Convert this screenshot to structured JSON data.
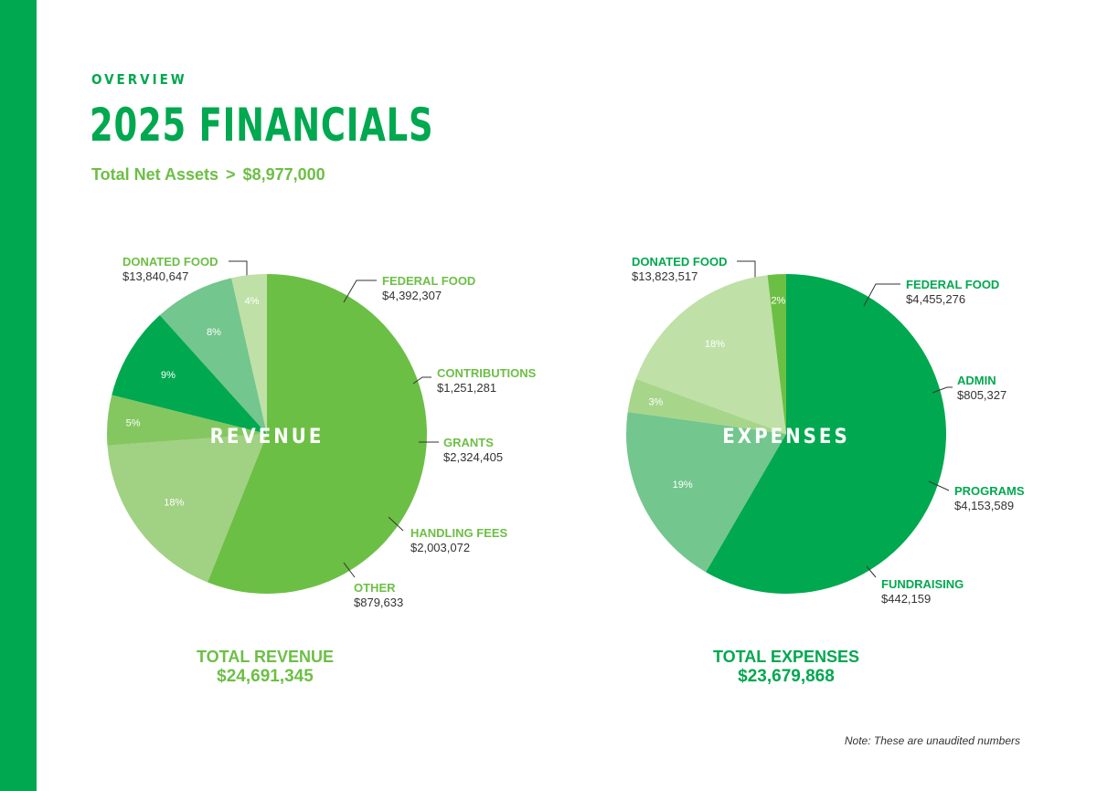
{
  "header": {
    "eyebrow": "OVERVIEW",
    "title": "2025 FINANCIALS",
    "net_assets_label": "Total Net Assets",
    "net_assets_sep": ">",
    "net_assets_value": "$8,977,000"
  },
  "colors": {
    "brand_green": "#00a84f",
    "light_green_text": "#6cbf45"
  },
  "chart_data": [
    {
      "type": "pie",
      "center_label": "REVENUE",
      "total_label": "TOTAL REVENUE",
      "total_value": "$24,691,345",
      "label_color": "#6cbf45",
      "slices": [
        {
          "name": "DONATED FOOD",
          "amount": "$13,840,647",
          "value": 13840647,
          "pct": "56%",
          "color": "#6cbf45"
        },
        {
          "name": "FEDERAL FOOD",
          "amount": "$4,392,307",
          "value": 4392307,
          "pct": "18%",
          "color": "#a1d183"
        },
        {
          "name": "CONTRIBUTIONS",
          "amount": "$1,251,281",
          "value": 1251281,
          "pct": "5%",
          "color": "#84c760"
        },
        {
          "name": "GRANTS",
          "amount": "$2,324,405",
          "value": 2324405,
          "pct": "9%",
          "color": "#00a84f"
        },
        {
          "name": "HANDLING FEES",
          "amount": "$2,003,072",
          "value": 2003072,
          "pct": "8%",
          "color": "#73c68d"
        },
        {
          "name": "OTHER",
          "amount": "$879,633",
          "value": 879633,
          "pct": "4%",
          "color": "#bfe0a7"
        }
      ]
    },
    {
      "type": "pie",
      "center_label": "EXPENSES",
      "total_label": "TOTAL EXPENSES",
      "total_value": "$23,679,868",
      "label_color": "#00a84f",
      "slices": [
        {
          "name": "DONATED FOOD",
          "amount": "$13,823,517",
          "value": 13823517,
          "pct": "58%",
          "color": "#00a84f"
        },
        {
          "name": "FEDERAL FOOD",
          "amount": "$4,455,276",
          "value": 4455276,
          "pct": "19%",
          "color": "#73c68d"
        },
        {
          "name": "ADMIN",
          "amount": "$805,327",
          "value": 805327,
          "pct": "3%",
          "color": "#a7d68b"
        },
        {
          "name": "PROGRAMS",
          "amount": "$4,153,589",
          "value": 4153589,
          "pct": "18%",
          "color": "#bfe0a7"
        },
        {
          "name": "FUNDRAISING",
          "amount": "$442,159",
          "value": 442159,
          "pct": "2%",
          "color": "#6cbf45"
        }
      ]
    }
  ],
  "note": "Note: These are unaudited numbers"
}
